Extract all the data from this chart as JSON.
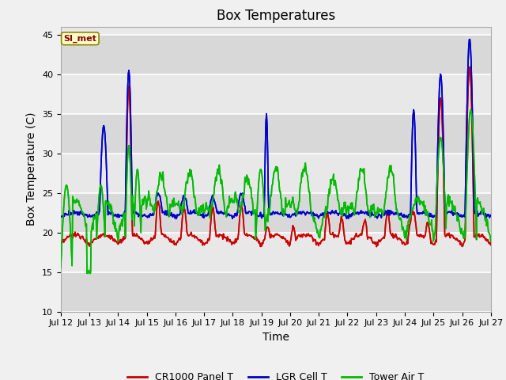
{
  "title": "Box Temperatures",
  "xlabel": "Time",
  "ylabel": "Box Temperature (C)",
  "ylim": [
    10,
    46
  ],
  "yticks": [
    10,
    15,
    20,
    25,
    30,
    35,
    40,
    45
  ],
  "fig_bg": "#f0f0f0",
  "plot_bg": "#e8e8e8",
  "line_colors": {
    "cr1000": "#cc0000",
    "lgr": "#0000cc",
    "tower": "#00bb00"
  },
  "line_widths": {
    "cr1000": 1.2,
    "lgr": 1.2,
    "tower": 1.2
  },
  "legend_labels": [
    "CR1000 Panel T",
    "LGR Cell T",
    "Tower Air T"
  ],
  "si_met_label": "SI_met",
  "xtick_labels": [
    "Jul 12",
    "Jul 13",
    "Jul 14",
    "Jul 15",
    "Jul 16",
    "Jul 17",
    "Jul 18",
    "Jul 19",
    "Jul 20",
    "Jul 21",
    "Jul 22",
    "Jul 23",
    "Jul 24",
    "Jul 25",
    "Jul 26",
    "Jul 27"
  ],
  "title_fontsize": 12,
  "axis_fontsize": 10,
  "tick_fontsize": 8,
  "legend_fontsize": 9
}
